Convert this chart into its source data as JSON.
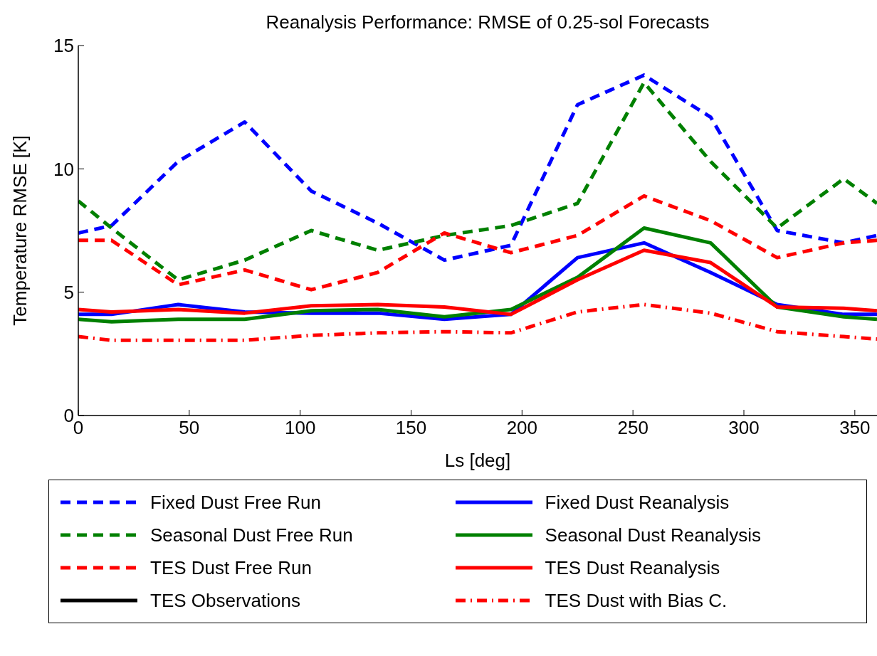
{
  "chart_data": {
    "type": "line",
    "title": "Reanalysis Performance: RMSE of 0.25-sol Forecasts",
    "xlabel": "Ls [deg]",
    "ylabel": "Temperature RMSE [K]",
    "x": [
      0,
      15,
      45,
      75,
      105,
      135,
      165,
      195,
      225,
      255,
      285,
      315,
      345,
      360
    ],
    "xlim": [
      0,
      360
    ],
    "xticks": [
      0,
      50,
      100,
      150,
      200,
      250,
      300,
      350
    ],
    "ylim": [
      0,
      15
    ],
    "yticks": [
      0,
      5,
      10,
      15
    ],
    "grid": false,
    "legend": "bottom",
    "marker": "none",
    "series": [
      {
        "name": "Fixed Dust Free Run",
        "color": "#0000ff",
        "line_style": "dashed",
        "values": [
          7.4,
          7.7,
          10.3,
          11.9,
          9.1,
          7.8,
          6.3,
          6.9,
          12.6,
          13.8,
          12.1,
          7.5,
          7.0,
          7.3
        ]
      },
      {
        "name": "Seasonal Dust Free Run",
        "color": "#008000",
        "line_style": "dashed",
        "values": [
          8.7,
          7.6,
          5.5,
          6.3,
          7.5,
          6.7,
          7.3,
          7.7,
          8.6,
          13.5,
          10.3,
          7.6,
          9.6,
          8.6
        ]
      },
      {
        "name": "TES Dust Free Run",
        "color": "#ff0000",
        "line_style": "dashed",
        "values": [
          7.1,
          7.1,
          5.3,
          5.9,
          5.1,
          5.8,
          7.4,
          6.6,
          7.3,
          8.9,
          7.9,
          6.4,
          7.0,
          7.1
        ]
      },
      {
        "name": "TES Observations",
        "color": "#000000",
        "line_style": "solid",
        "values": [
          null,
          null,
          null,
          null,
          null,
          null,
          null,
          null,
          null,
          null,
          null,
          null,
          null,
          null
        ]
      },
      {
        "name": "Fixed Dust Reanalysis",
        "color": "#0000ff",
        "line_style": "solid",
        "values": [
          4.1,
          4.1,
          4.5,
          4.2,
          4.15,
          4.15,
          3.9,
          4.1,
          6.4,
          7.0,
          5.8,
          4.5,
          4.1,
          4.1
        ]
      },
      {
        "name": "Seasonal Dust Reanalysis",
        "color": "#008000",
        "line_style": "solid",
        "values": [
          3.9,
          3.8,
          3.9,
          3.9,
          4.25,
          4.3,
          4.0,
          4.3,
          5.6,
          7.6,
          7.0,
          4.4,
          4.0,
          3.9
        ]
      },
      {
        "name": "TES Dust Reanalysis",
        "color": "#ff0000",
        "line_style": "solid",
        "values": [
          4.3,
          4.2,
          4.3,
          4.15,
          4.45,
          4.5,
          4.4,
          4.1,
          5.5,
          6.7,
          6.2,
          4.4,
          4.35,
          4.25
        ]
      },
      {
        "name": "TES Dust with Bias C.",
        "color": "#ff0000",
        "line_style": "dashdot",
        "values": [
          3.2,
          3.05,
          3.05,
          3.05,
          3.25,
          3.35,
          3.4,
          3.35,
          4.2,
          4.5,
          4.15,
          3.4,
          3.2,
          3.1
        ]
      }
    ]
  }
}
